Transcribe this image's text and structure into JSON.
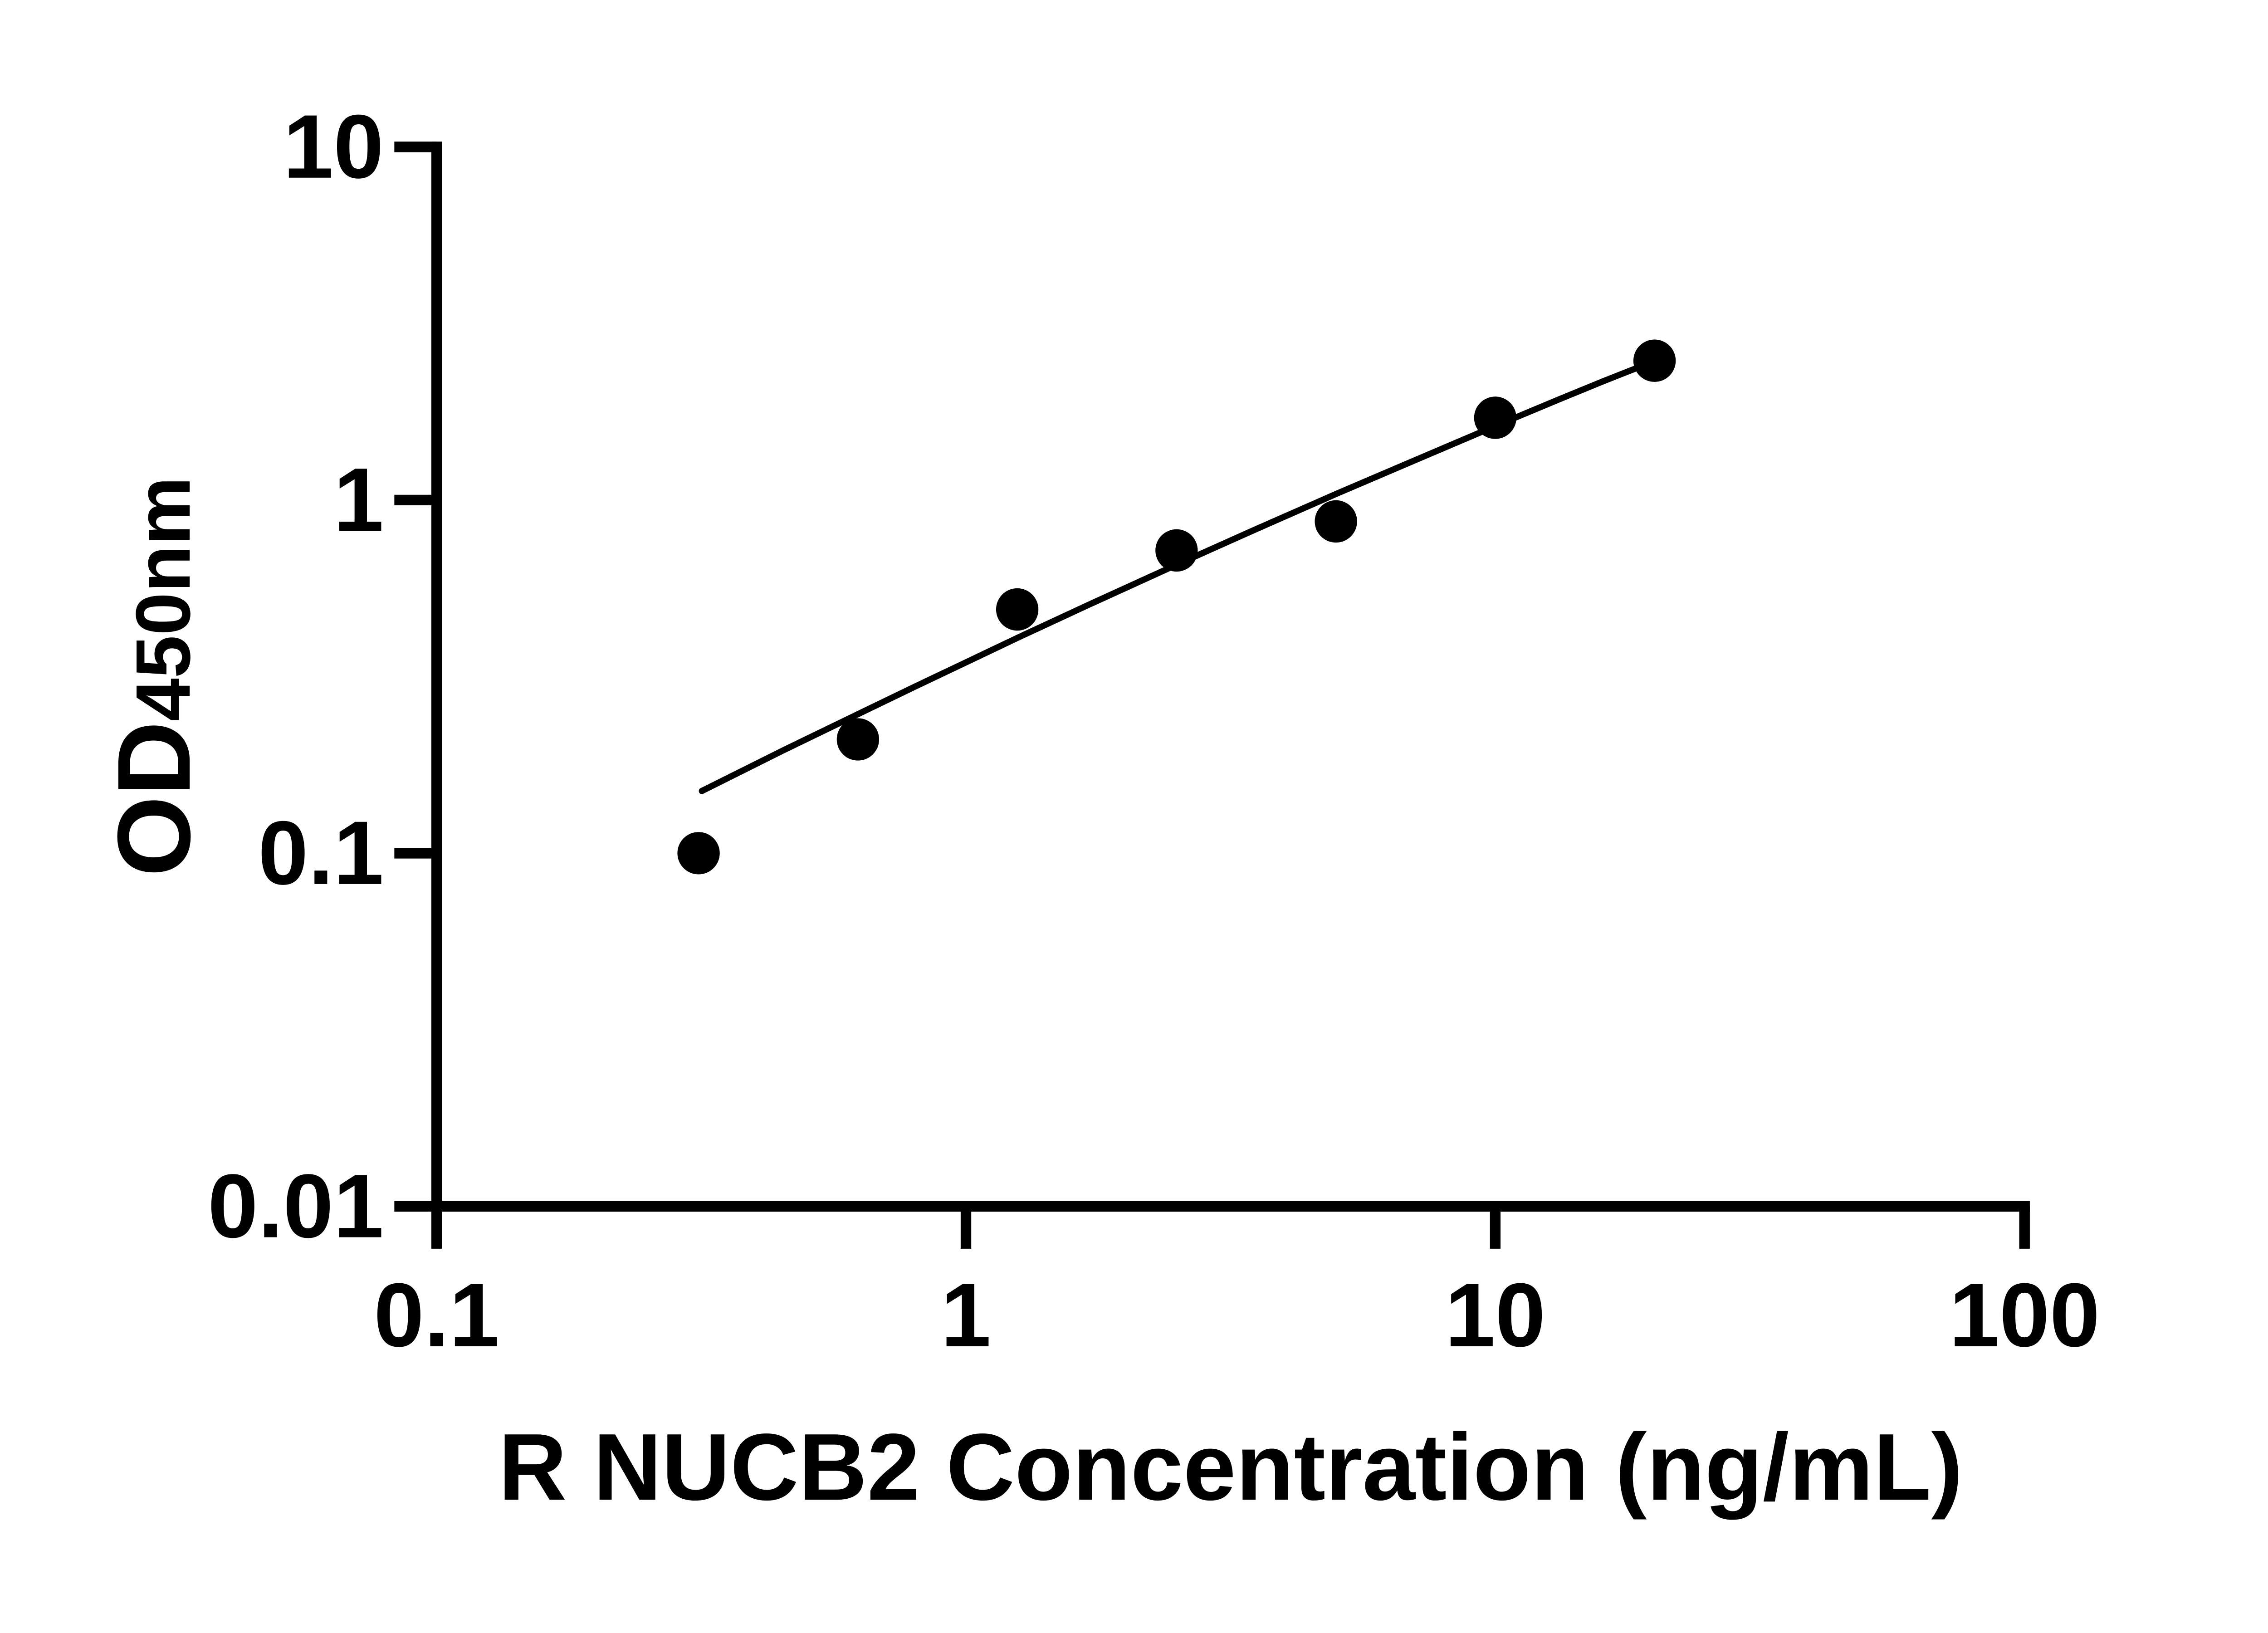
{
  "figure": {
    "background_color": "#ffffff",
    "foreground_color": "#000000",
    "description": "ELISA standard curve scatter plot with fitted trend line"
  },
  "chart_data": {
    "type": "scatter",
    "title": "",
    "xlabel": "R NUCB2 Concentration (ng/mL)",
    "ylabel_main": "OD",
    "ylabel_sub": "450nm",
    "x_scale": "log",
    "y_scale": "log",
    "xlim": [
      0.1,
      100
    ],
    "ylim": [
      0.01,
      10
    ],
    "grid": false,
    "legend": "none",
    "x_ticks": [
      {
        "value": 0.1,
        "label": "0.1"
      },
      {
        "value": 1,
        "label": "1"
      },
      {
        "value": 10,
        "label": "10"
      },
      {
        "value": 100,
        "label": "100"
      }
    ],
    "y_ticks": [
      {
        "value": 10,
        "label": "10"
      },
      {
        "value": 1,
        "label": "1"
      },
      {
        "value": 0.1,
        "label": "0.1"
      },
      {
        "value": 0.01,
        "label": "0.01"
      }
    ],
    "series": [
      {
        "name": "standard-points",
        "marker": "filled-circle",
        "color": "#000000",
        "points": [
          {
            "x": 0.3125,
            "y": 0.1
          },
          {
            "x": 0.625,
            "y": 0.21
          },
          {
            "x": 1.25,
            "y": 0.49
          },
          {
            "x": 2.5,
            "y": 0.72
          },
          {
            "x": 5,
            "y": 0.87
          },
          {
            "x": 10,
            "y": 1.71
          },
          {
            "x": 20,
            "y": 2.48
          }
        ]
      }
    ],
    "trendline": {
      "name": "fit-line",
      "color": "#000000",
      "points": [
        [
          0.317,
          0.15
        ],
        [
          0.45,
          0.195
        ],
        [
          0.63,
          0.249
        ],
        [
          0.8,
          0.296
        ],
        [
          1.0,
          0.347
        ],
        [
          1.25,
          0.407
        ],
        [
          1.7,
          0.504
        ],
        [
          2.5,
          0.656
        ],
        [
          3.5,
          0.822
        ],
        [
          5.0,
          1.04
        ],
        [
          7.0,
          1.29
        ],
        [
          10.0,
          1.62
        ],
        [
          13.0,
          1.91
        ],
        [
          16.0,
          2.17
        ],
        [
          20.2,
          2.49
        ]
      ]
    }
  }
}
